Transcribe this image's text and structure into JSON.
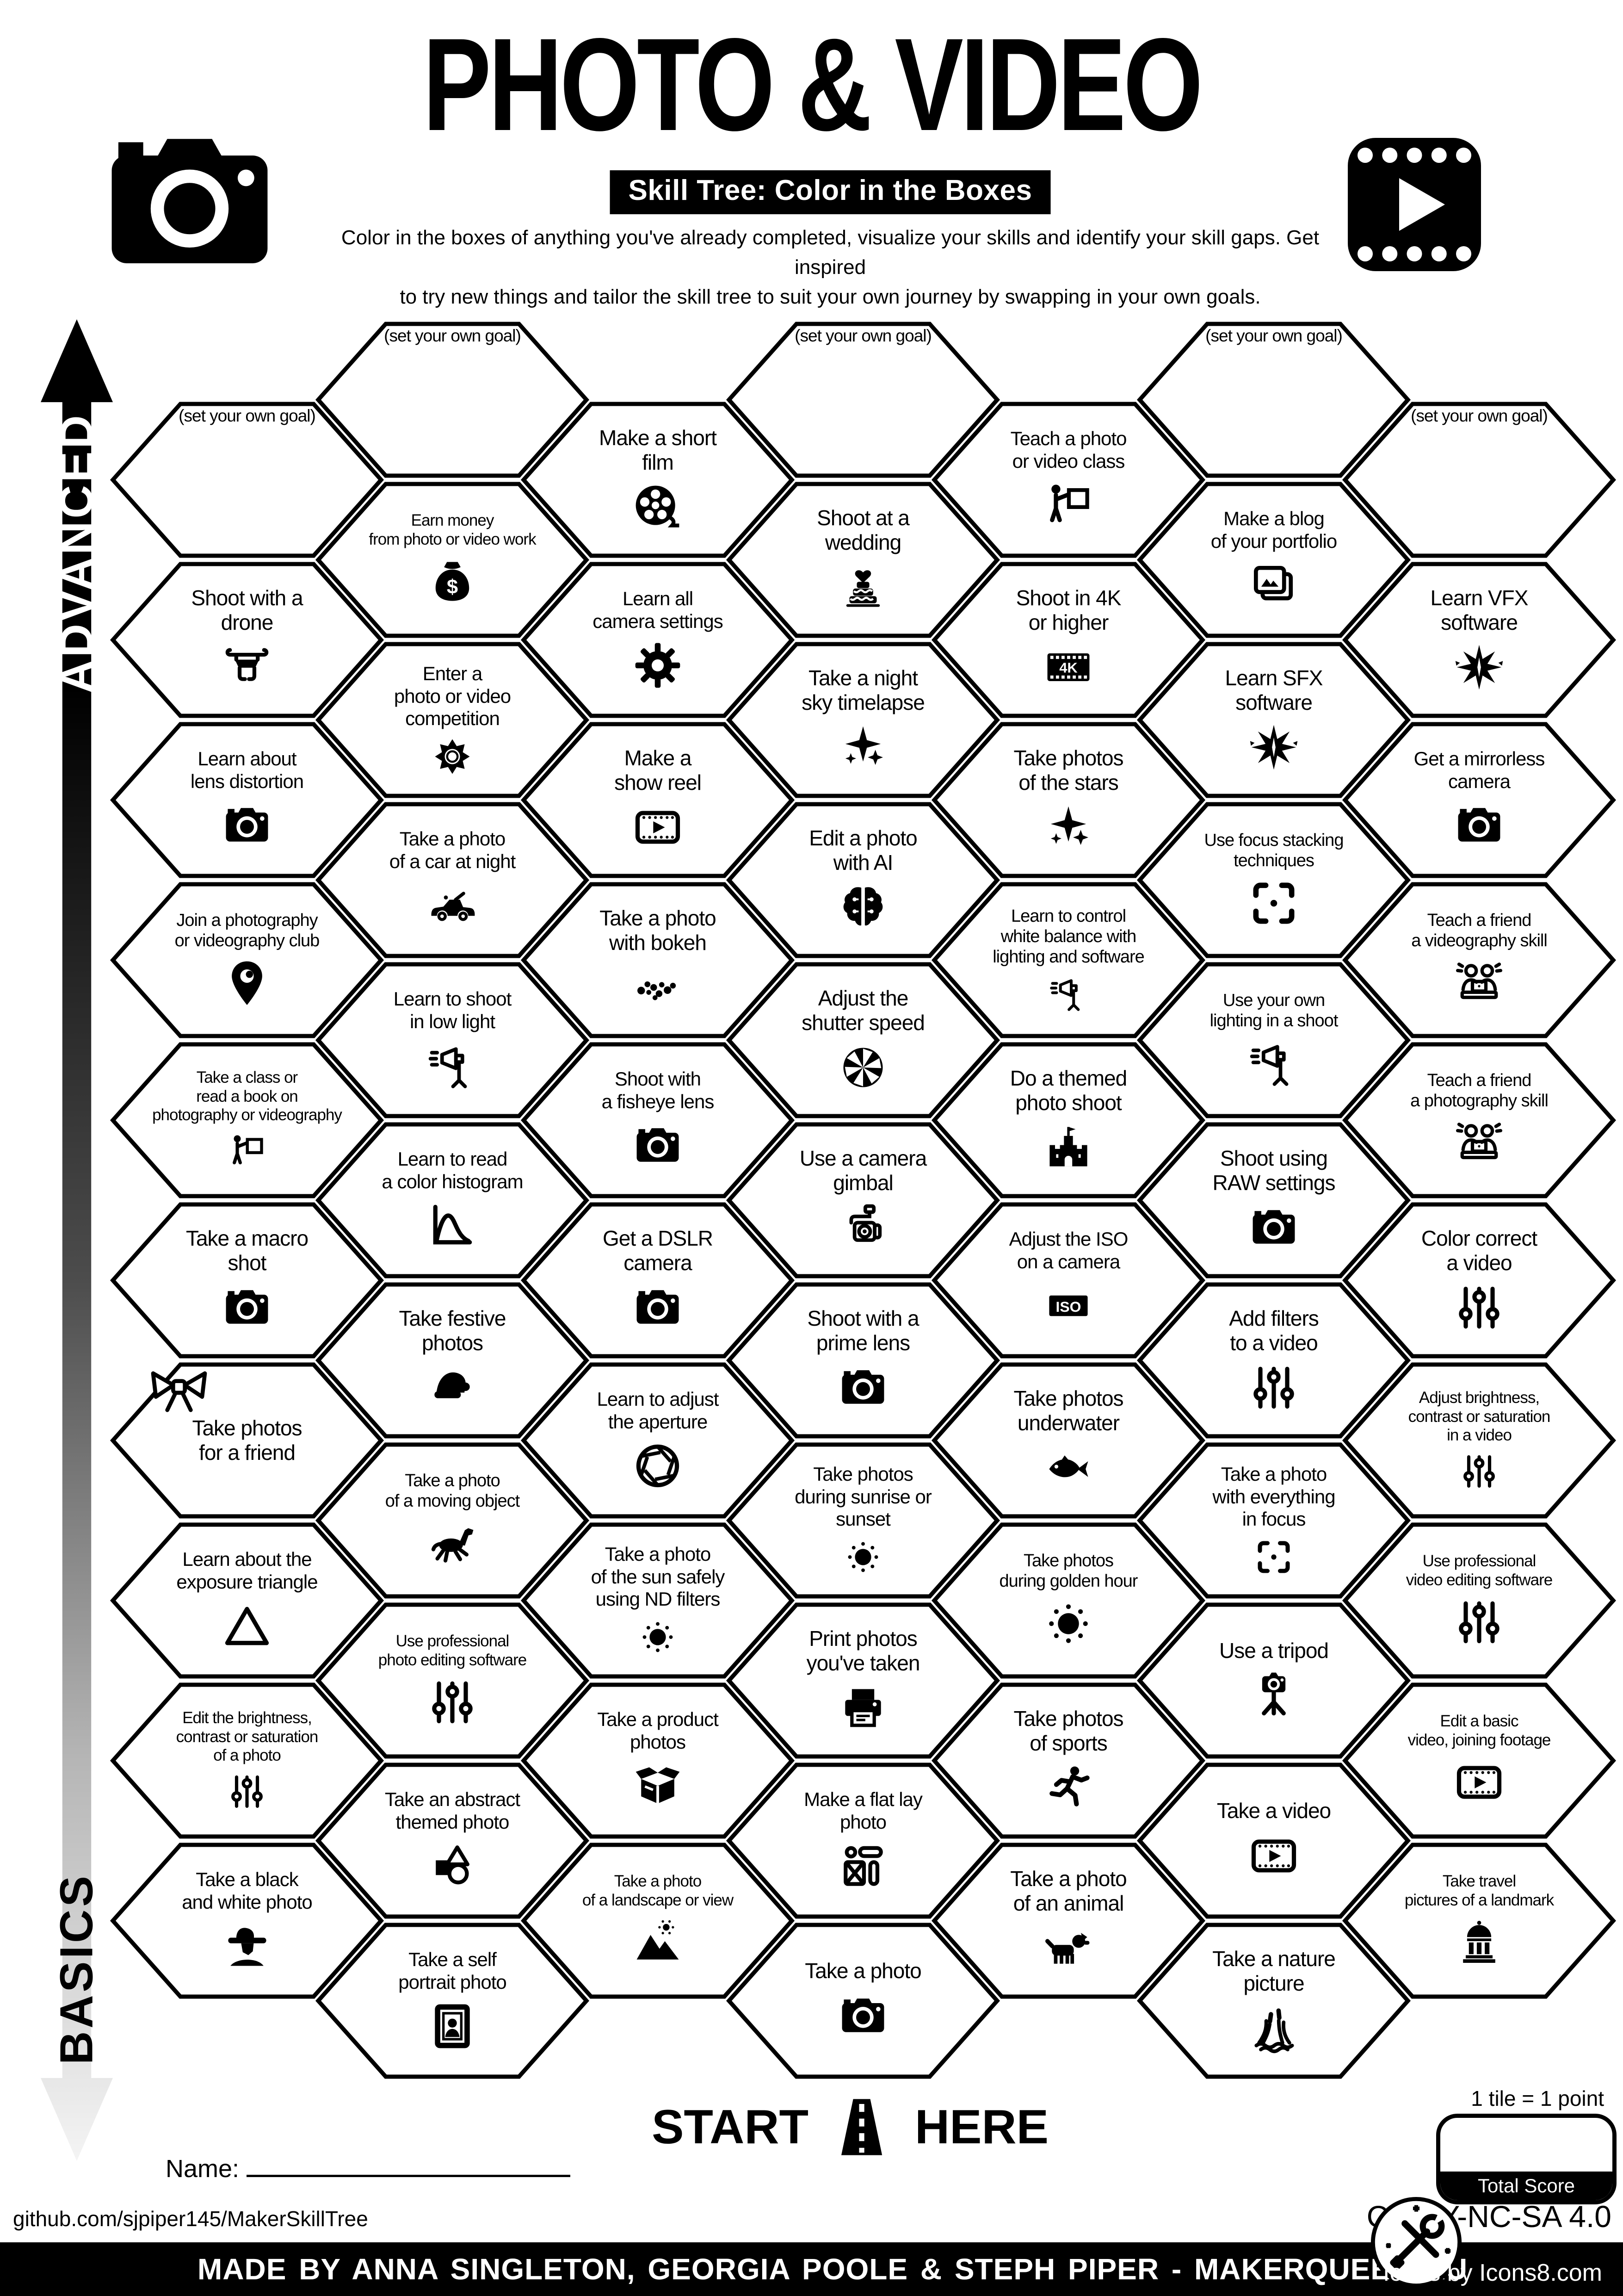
{
  "header": {
    "title": "PHOTO & VIDEO",
    "subtitle": "Skill Tree: Color in the Boxes",
    "description": "Color in the boxes of anything you've already completed, visualize your skills and identify your skill gaps.  Get inspired\nto try new things and tailor the skill tree to suit your own journey by swapping in your own goals.",
    "left_icon": "camera-icon",
    "right_icon": "film-play-icon"
  },
  "axis": {
    "advanced": "ADVANCED",
    "basics": "BASICS"
  },
  "columns": [
    {
      "id": "A",
      "tiles": [
        {
          "label": "(set your own goal)",
          "goal": true
        },
        {
          "label": "Shoot with a\ndrone",
          "icon": "drone-icon"
        },
        {
          "label": "Learn about\nlens distortion",
          "icon": "camera-icon"
        },
        {
          "label": "Join a photography\nor videography club",
          "icon": "location-pin-icon"
        },
        {
          "label": "Take a class or\nread a book on\nphotography or videography",
          "icon": "teacher-icon"
        },
        {
          "label": "Take a macro\nshot",
          "icon": "camera-icon"
        },
        {
          "label": "Take photos\nfor a friend",
          "decor": "bow-icon"
        },
        {
          "label": "Learn about the\nexposure triangle",
          "icon": "triangle-icon"
        },
        {
          "label": "Edit the brightness,\ncontrast or saturation\nof a photo",
          "icon": "sliders-icon"
        },
        {
          "label": "Take a black\nand white photo",
          "icon": "fedora-man-icon"
        }
      ]
    },
    {
      "id": "B",
      "tiles": [
        {
          "label": "(set your own goal)",
          "goal": true
        },
        {
          "label": "Earn money\nfrom photo or video work",
          "icon": "money-bag-icon"
        },
        {
          "label": "Enter a\nphoto or video\ncompetition",
          "icon": "rosette-icon"
        },
        {
          "label": "Take a photo\nof a car at night",
          "icon": "car-icon"
        },
        {
          "label": "Learn to shoot\nin low light",
          "icon": "studio-light-icon"
        },
        {
          "label": "Learn to read\na color histogram",
          "icon": "histogram-icon"
        },
        {
          "label": "Take festive\nphotos",
          "icon": "santa-hat-icon"
        },
        {
          "label": "Take a photo\nof a moving object",
          "icon": "horse-icon"
        },
        {
          "label": "Use professional\nphoto editing software",
          "icon": "sliders-icon"
        },
        {
          "label": "Take an abstract\nthemed photo",
          "icon": "shapes-icon"
        },
        {
          "label": "Take a self\nportrait photo",
          "icon": "portrait-frame-icon"
        }
      ]
    },
    {
      "id": "C",
      "tiles": [
        {
          "label": "Make a short\nfilm",
          "icon": "film-reel-icon"
        },
        {
          "label": "Learn all\ncamera settings",
          "icon": "gear-icon"
        },
        {
          "label": "Make a\nshow reel",
          "icon": "video-play-icon"
        },
        {
          "label": "Take a photo\nwith bokeh",
          "icon": "bokeh-icon"
        },
        {
          "label": "Shoot with\na fisheye lens",
          "icon": "camera-icon"
        },
        {
          "label": "Get a DSLR\ncamera",
          "icon": "camera-icon"
        },
        {
          "label": "Learn to adjust\nthe aperture",
          "icon": "aperture-icon"
        },
        {
          "label": "Take a photo\nof the sun safely\nusing ND filters",
          "icon": "sun-icon"
        },
        {
          "label": "Take a product\nphotos",
          "icon": "product-box-icon"
        },
        {
          "label": "Take a photo\nof a landscape or view",
          "icon": "mountains-icon"
        }
      ]
    },
    {
      "id": "D",
      "tiles": [
        {
          "label": "(set your own goal)",
          "goal": true
        },
        {
          "label": "Shoot at a\nwedding",
          "icon": "wedding-cake-icon"
        },
        {
          "label": "Take a night\nsky timelapse",
          "icon": "sparkles-icon"
        },
        {
          "label": "Edit a photo\nwith AI",
          "icon": "brain-icon"
        },
        {
          "label": "Adjust the\nshutter speed",
          "icon": "shutter-icon"
        },
        {
          "label": "Use a camera\ngimbal",
          "icon": "gimbal-icon"
        },
        {
          "label": "Shoot with a\nprime lens",
          "icon": "camera-icon"
        },
        {
          "label": "Take photos\nduring sunrise or\nsunset",
          "icon": "sun-icon"
        },
        {
          "label": "Print photos\nyou've taken",
          "icon": "printer-icon"
        },
        {
          "label": "Make a flat lay\nphoto",
          "icon": "flat-lay-icon"
        },
        {
          "label": "Take a photo",
          "icon": "camera-icon"
        }
      ]
    },
    {
      "id": "E",
      "tiles": [
        {
          "label": "Teach a photo\nor video class",
          "icon": "teacher-icon"
        },
        {
          "label": "Shoot in 4K\nor higher",
          "icon": "film-4k-icon"
        },
        {
          "label": "Take photos\nof the stars",
          "icon": "sparkles-icon"
        },
        {
          "label": "Learn to control\nwhite balance with\nlighting and software",
          "icon": "studio-light-icon"
        },
        {
          "label": "Do a themed\nphoto shoot",
          "icon": "castle-icon"
        },
        {
          "label": "Adjust the ISO\non a camera",
          "icon": "iso-icon"
        },
        {
          "label": "Take photos\nunderwater",
          "icon": "fish-icon"
        },
        {
          "label": "Take photos\nduring golden hour",
          "icon": "sun-icon"
        },
        {
          "label": "Take photos\nof sports",
          "icon": "runner-icon"
        },
        {
          "label": "Take a photo\nof an animal",
          "icon": "dog-icon"
        }
      ]
    },
    {
      "id": "F",
      "tiles": [
        {
          "label": "(set your own goal)",
          "goal": true
        },
        {
          "label": "Make a blog\nof your portfolio",
          "icon": "gallery-icon"
        },
        {
          "label": "Learn SFX\nsoftware",
          "icon": "explosion-icon"
        },
        {
          "label": "Use focus stacking\ntechniques",
          "icon": "focus-frame-icon"
        },
        {
          "label": "Use your own\nlighting in a shoot",
          "icon": "studio-light-icon"
        },
        {
          "label": "Shoot using\nRAW settings",
          "icon": "camera-icon"
        },
        {
          "label": "Add filters\nto a video",
          "icon": "sliders-icon"
        },
        {
          "label": "Take a photo\nwith everything\nin focus",
          "icon": "focus-frame-icon"
        },
        {
          "label": "Use a tripod",
          "icon": "tripod-icon"
        },
        {
          "label": "Take a video",
          "icon": "video-play-icon"
        },
        {
          "label": "Take a nature\npicture",
          "icon": "reeds-icon"
        }
      ]
    },
    {
      "id": "G",
      "tiles": [
        {
          "label": "(set your own goal)",
          "goal": true
        },
        {
          "label": "Learn VFX\nsoftware",
          "icon": "explosion-icon"
        },
        {
          "label": "Get a mirrorless\ncamera",
          "icon": "camera-icon"
        },
        {
          "label": "Teach a friend\na videography skill",
          "icon": "friends-icon"
        },
        {
          "label": "Teach a friend\na photography skill",
          "icon": "friends-icon"
        },
        {
          "label": "Color correct\na video",
          "icon": "sliders-icon"
        },
        {
          "label": "Adjust brightness,\ncontrast or saturation\nin a video",
          "icon": "sliders-icon"
        },
        {
          "label": "Use professional\nvideo editing software",
          "icon": "sliders-icon"
        },
        {
          "label": "Edit a basic\nvideo, joining footage",
          "icon": "video-play-icon"
        },
        {
          "label": "Take travel\npictures of a landmark",
          "icon": "landmark-icon"
        }
      ]
    }
  ],
  "start": {
    "start_label": "START",
    "here_label": "HERE",
    "icon": "road-icon"
  },
  "scoring": {
    "note": "1 tile = 1 point",
    "total_label": "Total Score"
  },
  "footer": {
    "name_label": "Name:",
    "github": "github.com/sjpiper145/MakerSkillTree",
    "credit": "MADE BY ANNA SINGLETON, GEORGIA POOLE & STEPH PIPER - MAKERQUEEN AU",
    "license": "CC BY-NC-SA 4.0",
    "icons_credit": "Icons by Icons8.com",
    "logo_icon": "tools-icon"
  }
}
